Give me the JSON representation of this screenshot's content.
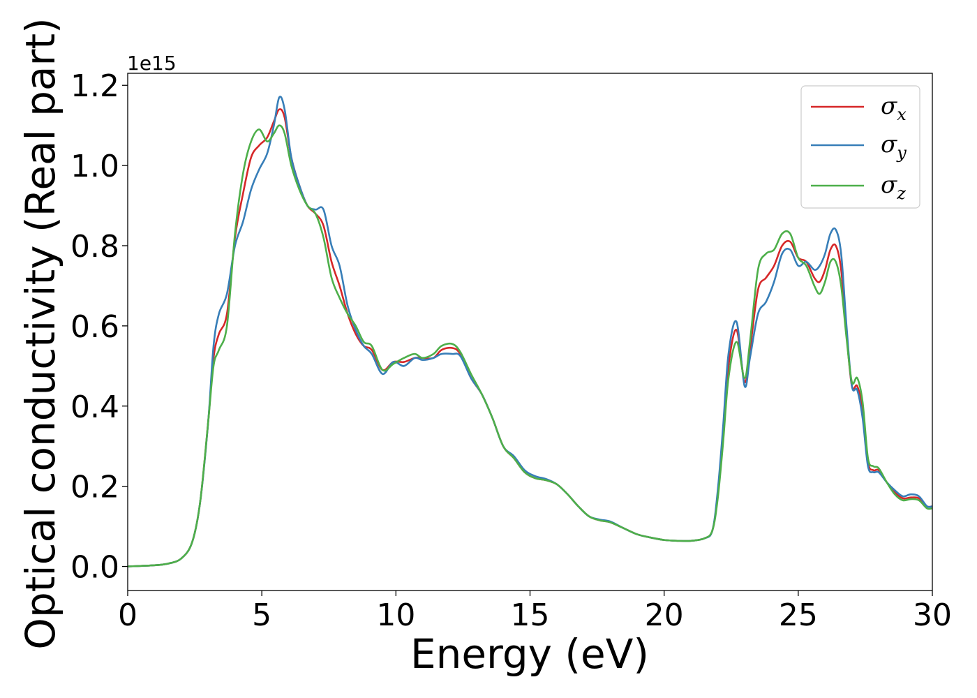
{
  "chart_data": {
    "type": "line",
    "title": "",
    "xlabel": "Energy (eV)",
    "ylabel": "Optical conductivity (Real part)",
    "y_offset_label": "1e15",
    "xlim": [
      0,
      30
    ],
    "ylim": [
      -0.06,
      1.23
    ],
    "xticks": [
      0,
      5,
      10,
      15,
      20,
      25,
      30
    ],
    "xtick_labels": [
      "0",
      "5",
      "10",
      "15",
      "20",
      "25",
      "30"
    ],
    "yticks": [
      0.0,
      0.2,
      0.4,
      0.6,
      0.8,
      1.0,
      1.2
    ],
    "ytick_labels": [
      "0.0",
      "0.2",
      "0.4",
      "0.6",
      "0.8",
      "1.0",
      "1.2"
    ],
    "grid": false,
    "legend_position": "top-right",
    "x": [
      0,
      1,
      1.5,
      2,
      2.4,
      2.7,
      3.0,
      3.2,
      3.4,
      3.7,
      4.0,
      4.3,
      4.6,
      4.9,
      5.2,
      5.45,
      5.65,
      5.85,
      6.1,
      6.4,
      6.7,
      7.0,
      7.3,
      7.6,
      7.9,
      8.2,
      8.5,
      8.8,
      9.1,
      9.5,
      9.9,
      10.3,
      10.7,
      11.0,
      11.4,
      11.7,
      12.1,
      12.4,
      12.8,
      13.2,
      13.6,
      14.0,
      14.4,
      14.8,
      15.2,
      15.6,
      16.0,
      16.4,
      16.8,
      17.2,
      17.6,
      18.0,
      18.5,
      19.0,
      19.5,
      20.0,
      20.5,
      21.0,
      21.5,
      21.8,
      22.0,
      22.2,
      22.4,
      22.7,
      23.0,
      23.2,
      23.5,
      23.8,
      24.1,
      24.4,
      24.7,
      25.0,
      25.3,
      25.6,
      25.8,
      26.0,
      26.2,
      26.4,
      26.6,
      26.8,
      27.0,
      27.2,
      27.4,
      27.6,
      27.8,
      28.0,
      28.3,
      28.6,
      28.9,
      29.2,
      29.5,
      29.8,
      30.0
    ],
    "series": [
      {
        "name": "σx",
        "color": "#d62728",
        "values": [
          0.0,
          0.003,
          0.007,
          0.02,
          0.06,
          0.16,
          0.36,
          0.52,
          0.58,
          0.63,
          0.82,
          0.93,
          1.02,
          1.05,
          1.07,
          1.11,
          1.14,
          1.12,
          1.02,
          0.95,
          0.9,
          0.88,
          0.85,
          0.76,
          0.7,
          0.63,
          0.58,
          0.55,
          0.54,
          0.49,
          0.51,
          0.51,
          0.52,
          0.52,
          0.52,
          0.54,
          0.545,
          0.53,
          0.47,
          0.43,
          0.37,
          0.3,
          0.27,
          0.235,
          0.22,
          0.215,
          0.205,
          0.18,
          0.15,
          0.125,
          0.115,
          0.11,
          0.095,
          0.08,
          0.072,
          0.066,
          0.064,
          0.064,
          0.07,
          0.09,
          0.18,
          0.33,
          0.5,
          0.59,
          0.46,
          0.54,
          0.69,
          0.72,
          0.75,
          0.8,
          0.81,
          0.77,
          0.76,
          0.72,
          0.71,
          0.74,
          0.79,
          0.8,
          0.74,
          0.58,
          0.45,
          0.45,
          0.39,
          0.26,
          0.24,
          0.24,
          0.21,
          0.185,
          0.17,
          0.172,
          0.17,
          0.15,
          0.15
        ]
      },
      {
        "name": "σy",
        "color": "#377eb8",
        "values": [
          0.0,
          0.003,
          0.007,
          0.02,
          0.06,
          0.16,
          0.36,
          0.55,
          0.63,
          0.68,
          0.8,
          0.86,
          0.94,
          0.99,
          1.03,
          1.1,
          1.17,
          1.14,
          1.02,
          0.95,
          0.9,
          0.89,
          0.89,
          0.8,
          0.75,
          0.65,
          0.59,
          0.55,
          0.53,
          0.48,
          0.51,
          0.5,
          0.52,
          0.515,
          0.52,
          0.53,
          0.53,
          0.525,
          0.47,
          0.43,
          0.37,
          0.3,
          0.275,
          0.24,
          0.225,
          0.218,
          0.205,
          0.18,
          0.15,
          0.125,
          0.117,
          0.112,
          0.095,
          0.08,
          0.072,
          0.066,
          0.064,
          0.064,
          0.07,
          0.09,
          0.19,
          0.35,
          0.53,
          0.61,
          0.45,
          0.52,
          0.63,
          0.66,
          0.71,
          0.78,
          0.79,
          0.75,
          0.76,
          0.74,
          0.75,
          0.78,
          0.83,
          0.84,
          0.78,
          0.6,
          0.45,
          0.44,
          0.37,
          0.25,
          0.235,
          0.235,
          0.21,
          0.19,
          0.175,
          0.18,
          0.175,
          0.15,
          0.15
        ]
      },
      {
        "name": "σz",
        "color": "#4daf4a",
        "values": [
          0.0,
          0.003,
          0.007,
          0.02,
          0.06,
          0.16,
          0.36,
          0.5,
          0.54,
          0.6,
          0.83,
          0.98,
          1.06,
          1.09,
          1.06,
          1.08,
          1.1,
          1.08,
          1.0,
          0.94,
          0.9,
          0.88,
          0.82,
          0.72,
          0.67,
          0.63,
          0.6,
          0.56,
          0.55,
          0.49,
          0.505,
          0.52,
          0.53,
          0.52,
          0.53,
          0.55,
          0.555,
          0.535,
          0.48,
          0.43,
          0.37,
          0.3,
          0.27,
          0.235,
          0.22,
          0.215,
          0.205,
          0.18,
          0.15,
          0.125,
          0.115,
          0.11,
          0.095,
          0.08,
          0.072,
          0.066,
          0.064,
          0.064,
          0.07,
          0.09,
          0.17,
          0.31,
          0.47,
          0.56,
          0.47,
          0.56,
          0.74,
          0.78,
          0.79,
          0.83,
          0.83,
          0.77,
          0.75,
          0.7,
          0.68,
          0.71,
          0.76,
          0.76,
          0.7,
          0.57,
          0.46,
          0.47,
          0.41,
          0.27,
          0.25,
          0.245,
          0.21,
          0.18,
          0.165,
          0.168,
          0.165,
          0.145,
          0.145
        ]
      }
    ]
  }
}
